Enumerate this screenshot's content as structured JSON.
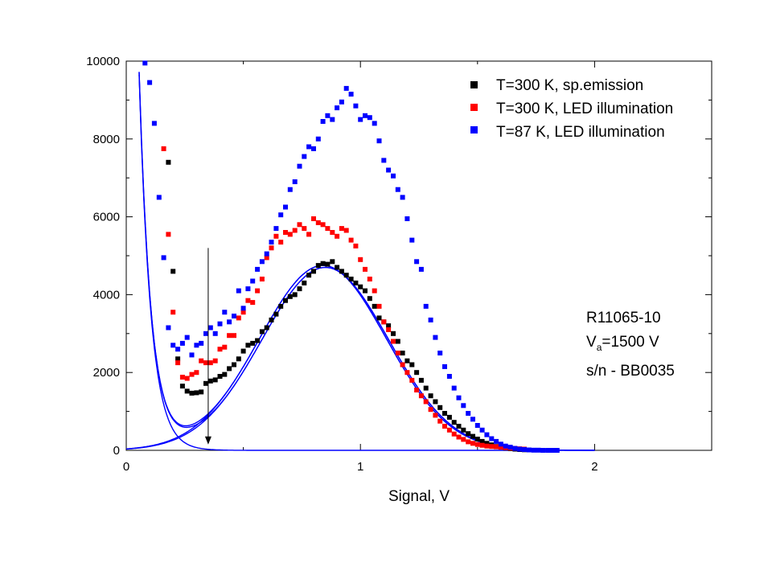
{
  "chart_data": {
    "type": "scatter",
    "xlabel": "Signal, V",
    "ylabel": "",
    "xlim": [
      0,
      2.5
    ],
    "ylim": [
      0,
      10000
    ],
    "x_ticks": [
      "0",
      "1",
      "2"
    ],
    "x_tick_values": [
      0,
      1,
      2
    ],
    "y_ticks": [
      "0",
      "2000",
      "4000",
      "6000",
      "8000",
      "10000"
    ],
    "y_tick_values": [
      0,
      2000,
      4000,
      6000,
      8000,
      10000
    ],
    "grid": false,
    "legend_position": "top-right",
    "legend": [
      {
        "label": "T=300 K, sp.emission",
        "color": "#000000"
      },
      {
        "label": "T=300 K, LED illumination",
        "color": "#ff0000"
      },
      {
        "label": "T=87 K, LED illumination",
        "color": "#0000ff"
      }
    ],
    "series": [
      {
        "name": "T=300 K, sp.emission",
        "color": "#000000",
        "points": [
          [
            0.18,
            7400
          ],
          [
            0.2,
            4600
          ],
          [
            0.22,
            2350
          ],
          [
            0.24,
            1650
          ],
          [
            0.26,
            1520
          ],
          [
            0.28,
            1470
          ],
          [
            0.3,
            1480
          ],
          [
            0.32,
            1500
          ],
          [
            0.34,
            1720
          ],
          [
            0.36,
            1780
          ],
          [
            0.38,
            1810
          ],
          [
            0.4,
            1900
          ],
          [
            0.42,
            1950
          ],
          [
            0.44,
            2100
          ],
          [
            0.46,
            2200
          ],
          [
            0.48,
            2350
          ],
          [
            0.5,
            2550
          ],
          [
            0.52,
            2700
          ],
          [
            0.54,
            2750
          ],
          [
            0.56,
            2820
          ],
          [
            0.58,
            3050
          ],
          [
            0.6,
            3150
          ],
          [
            0.62,
            3350
          ],
          [
            0.64,
            3500
          ],
          [
            0.66,
            3700
          ],
          [
            0.68,
            3850
          ],
          [
            0.7,
            3950
          ],
          [
            0.72,
            4000
          ],
          [
            0.74,
            4150
          ],
          [
            0.76,
            4300
          ],
          [
            0.78,
            4500
          ],
          [
            0.8,
            4600
          ],
          [
            0.82,
            4750
          ],
          [
            0.84,
            4800
          ],
          [
            0.86,
            4780
          ],
          [
            0.88,
            4850
          ],
          [
            0.9,
            4700
          ],
          [
            0.92,
            4600
          ],
          [
            0.94,
            4500
          ],
          [
            0.96,
            4400
          ],
          [
            0.98,
            4300
          ],
          [
            1.0,
            4200
          ],
          [
            1.02,
            4100
          ],
          [
            1.04,
            3900
          ],
          [
            1.06,
            3700
          ],
          [
            1.08,
            3400
          ],
          [
            1.1,
            3300
          ],
          [
            1.12,
            3200
          ],
          [
            1.14,
            3000
          ],
          [
            1.16,
            2800
          ],
          [
            1.18,
            2500
          ],
          [
            1.2,
            2300
          ],
          [
            1.22,
            2200
          ],
          [
            1.24,
            2000
          ],
          [
            1.26,
            1800
          ],
          [
            1.28,
            1600
          ],
          [
            1.3,
            1400
          ],
          [
            1.32,
            1250
          ],
          [
            1.34,
            1100
          ],
          [
            1.36,
            950
          ],
          [
            1.38,
            850
          ],
          [
            1.4,
            720
          ],
          [
            1.42,
            620
          ],
          [
            1.44,
            520
          ],
          [
            1.46,
            430
          ],
          [
            1.48,
            360
          ],
          [
            1.5,
            290
          ],
          [
            1.52,
            230
          ],
          [
            1.54,
            180
          ],
          [
            1.56,
            140
          ],
          [
            1.58,
            100
          ],
          [
            1.6,
            80
          ],
          [
            1.62,
            60
          ],
          [
            1.64,
            45
          ],
          [
            1.66,
            30
          ],
          [
            1.68,
            20
          ],
          [
            1.7,
            15
          ]
        ]
      },
      {
        "name": "T=300 K, LED illumination",
        "color": "#ff0000",
        "points": [
          [
            0.16,
            7750
          ],
          [
            0.18,
            5550
          ],
          [
            0.2,
            3550
          ],
          [
            0.22,
            2250
          ],
          [
            0.24,
            1880
          ],
          [
            0.26,
            1850
          ],
          [
            0.28,
            1950
          ],
          [
            0.3,
            2000
          ],
          [
            0.32,
            2300
          ],
          [
            0.34,
            2250
          ],
          [
            0.36,
            2250
          ],
          [
            0.38,
            2300
          ],
          [
            0.4,
            2600
          ],
          [
            0.42,
            2650
          ],
          [
            0.44,
            2950
          ],
          [
            0.46,
            2950
          ],
          [
            0.48,
            3400
          ],
          [
            0.5,
            3550
          ],
          [
            0.52,
            3850
          ],
          [
            0.54,
            3800
          ],
          [
            0.56,
            4100
          ],
          [
            0.58,
            4400
          ],
          [
            0.6,
            4950
          ],
          [
            0.62,
            5200
          ],
          [
            0.64,
            5500
          ],
          [
            0.66,
            5350
          ],
          [
            0.68,
            5600
          ],
          [
            0.7,
            5550
          ],
          [
            0.72,
            5650
          ],
          [
            0.74,
            5800
          ],
          [
            0.76,
            5700
          ],
          [
            0.78,
            5550
          ],
          [
            0.8,
            5950
          ],
          [
            0.82,
            5850
          ],
          [
            0.84,
            5800
          ],
          [
            0.86,
            5700
          ],
          [
            0.88,
            5600
          ],
          [
            0.9,
            5500
          ],
          [
            0.92,
            5700
          ],
          [
            0.94,
            5650
          ],
          [
            0.96,
            5400
          ],
          [
            0.98,
            5250
          ],
          [
            1.0,
            4900
          ],
          [
            1.02,
            4650
          ],
          [
            1.04,
            4400
          ],
          [
            1.06,
            4100
          ],
          [
            1.08,
            3700
          ],
          [
            1.1,
            3300
          ],
          [
            1.12,
            3100
          ],
          [
            1.14,
            2800
          ],
          [
            1.16,
            2500
          ],
          [
            1.18,
            2200
          ],
          [
            1.2,
            2000
          ],
          [
            1.22,
            1800
          ],
          [
            1.24,
            1550
          ],
          [
            1.26,
            1400
          ],
          [
            1.28,
            1250
          ],
          [
            1.3,
            1050
          ],
          [
            1.32,
            900
          ],
          [
            1.34,
            750
          ],
          [
            1.36,
            620
          ],
          [
            1.38,
            520
          ],
          [
            1.4,
            420
          ],
          [
            1.42,
            340
          ],
          [
            1.44,
            280
          ],
          [
            1.46,
            220
          ],
          [
            1.48,
            180
          ],
          [
            1.5,
            150
          ],
          [
            1.52,
            130
          ],
          [
            1.54,
            110
          ],
          [
            1.56,
            100
          ],
          [
            1.58,
            90
          ],
          [
            1.6,
            80
          ],
          [
            1.62,
            70
          ],
          [
            1.64,
            60
          ],
          [
            1.66,
            50
          ],
          [
            1.68,
            40
          ],
          [
            1.7,
            30
          ]
        ]
      },
      {
        "name": "T=87 K, LED illumination",
        "color": "#0000ff",
        "points": [
          [
            0.08,
            9950
          ],
          [
            0.1,
            9450
          ],
          [
            0.12,
            8400
          ],
          [
            0.14,
            6500
          ],
          [
            0.16,
            4950
          ],
          [
            0.18,
            3150
          ],
          [
            0.2,
            2700
          ],
          [
            0.22,
            2600
          ],
          [
            0.24,
            2750
          ],
          [
            0.26,
            2900
          ],
          [
            0.28,
            2450
          ],
          [
            0.3,
            2700
          ],
          [
            0.32,
            2750
          ],
          [
            0.34,
            3000
          ],
          [
            0.36,
            3150
          ],
          [
            0.38,
            3000
          ],
          [
            0.4,
            3250
          ],
          [
            0.42,
            3550
          ],
          [
            0.44,
            3300
          ],
          [
            0.46,
            3450
          ],
          [
            0.48,
            4100
          ],
          [
            0.5,
            3650
          ],
          [
            0.52,
            4150
          ],
          [
            0.54,
            4350
          ],
          [
            0.56,
            4650
          ],
          [
            0.58,
            4850
          ],
          [
            0.6,
            5050
          ],
          [
            0.62,
            5350
          ],
          [
            0.64,
            5700
          ],
          [
            0.66,
            6050
          ],
          [
            0.68,
            6250
          ],
          [
            0.7,
            6700
          ],
          [
            0.72,
            6900
          ],
          [
            0.74,
            7300
          ],
          [
            0.76,
            7550
          ],
          [
            0.78,
            7800
          ],
          [
            0.8,
            7750
          ],
          [
            0.82,
            8000
          ],
          [
            0.84,
            8450
          ],
          [
            0.86,
            8600
          ],
          [
            0.88,
            8500
          ],
          [
            0.9,
            8800
          ],
          [
            0.92,
            8950
          ],
          [
            0.94,
            9300
          ],
          [
            0.96,
            9150
          ],
          [
            0.98,
            8850
          ],
          [
            1.0,
            8500
          ],
          [
            1.02,
            8600
          ],
          [
            1.04,
            8550
          ],
          [
            1.06,
            8400
          ],
          [
            1.08,
            7950
          ],
          [
            1.1,
            7450
          ],
          [
            1.12,
            7200
          ],
          [
            1.14,
            7050
          ],
          [
            1.16,
            6700
          ],
          [
            1.18,
            6500
          ],
          [
            1.2,
            5950
          ],
          [
            1.22,
            5400
          ],
          [
            1.24,
            4850
          ],
          [
            1.26,
            4650
          ],
          [
            1.28,
            3700
          ],
          [
            1.3,
            3350
          ],
          [
            1.32,
            2900
          ],
          [
            1.34,
            2500
          ],
          [
            1.36,
            2150
          ],
          [
            1.38,
            1900
          ],
          [
            1.4,
            1600
          ],
          [
            1.42,
            1350
          ],
          [
            1.44,
            1150
          ],
          [
            1.46,
            950
          ],
          [
            1.48,
            800
          ],
          [
            1.5,
            640
          ],
          [
            1.52,
            520
          ],
          [
            1.54,
            400
          ],
          [
            1.56,
            300
          ],
          [
            1.58,
            230
          ],
          [
            1.6,
            160
          ],
          [
            1.62,
            110
          ],
          [
            1.64,
            80
          ],
          [
            1.66,
            50
          ],
          [
            1.68,
            30
          ],
          [
            1.7,
            20
          ],
          [
            1.72,
            10
          ],
          [
            1.74,
            5
          ],
          [
            1.76,
            5
          ],
          [
            1.78,
            0
          ],
          [
            1.8,
            0
          ],
          [
            1.82,
            0
          ],
          [
            1.84,
            0
          ]
        ]
      }
    ],
    "fit_curves": [
      {
        "kind": "exponential-decay",
        "color": "#0000ff",
        "amplitude": 29000,
        "decay": 0.05,
        "note_only": false
      },
      {
        "kind": "gaussian",
        "color": "#0000ff",
        "amplitude": 4700,
        "center": 0.85,
        "sigma": 0.27
      },
      {
        "kind": "gaussian",
        "color": "#0000ff",
        "amplitude": 4750,
        "center": 0.84,
        "sigma": 0.27
      },
      {
        "kind": "sum-exp-gaussian",
        "color": "#0000ff",
        "amplitude_exp": 29000,
        "decay": 0.05,
        "amplitude_g": 4700,
        "center": 0.85,
        "sigma": 0.27
      },
      {
        "kind": "sum-exp-gaussian",
        "color": "#0000ff",
        "amplitude_exp": 29000,
        "decay": 0.05,
        "amplitude_g": 4750,
        "center": 0.84,
        "sigma": 0.27
      }
    ],
    "arrow": {
      "x": 0.35,
      "y_from": 5200,
      "y_to": 150
    },
    "annotations": {
      "line1": "R11065-10",
      "line2_main": "V",
      "line2_sub": "a",
      "line2_rest": "=1500 V",
      "line3": "s/n - BB0035"
    }
  }
}
